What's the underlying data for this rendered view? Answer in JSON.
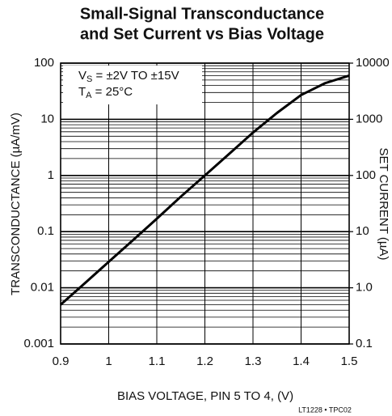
{
  "chart_data": {
    "type": "line",
    "title": [
      "Small-Signal Transconductance",
      "and Set Current vs Bias Voltage"
    ],
    "xlabel": "BIAS VOLTAGE, PIN 5 TO 4, (V)",
    "ylabel": "TRANSCONDUCTANCE (µA/mV)",
    "y2label": "SET CURRENT (µA)",
    "footnote": "LT1228 • TPC02",
    "annotation": [
      {
        "main": "V",
        "sub": "S",
        "rest": " = ±2V TO ±15V"
      },
      {
        "main": "T",
        "sub": "A",
        "rest": " = 25°C"
      }
    ],
    "x": [
      0.9,
      0.95,
      1.0,
      1.05,
      1.1,
      1.15,
      1.2,
      1.25,
      1.3,
      1.35,
      1.4,
      1.45,
      1.5
    ],
    "series": [
      {
        "name": "Transconductance",
        "color": "#000000",
        "values": [
          0.005,
          0.012,
          0.029,
          0.07,
          0.17,
          0.42,
          1.0,
          2.4,
          5.8,
          13,
          27,
          44,
          60
        ]
      }
    ],
    "xlim": [
      0.9,
      1.5
    ],
    "xticks": [
      0.9,
      1.0,
      1.1,
      1.2,
      1.3,
      1.4,
      1.5
    ],
    "ylim": [
      0.001,
      100
    ],
    "yticks": [
      0.001,
      0.01,
      0.1,
      1,
      10,
      100
    ],
    "y2lim": [
      0.1,
      10000
    ],
    "y2ticks": [
      0.1,
      {
        "value": 1,
        "label": "1.0"
      },
      10,
      100,
      1000,
      10000
    ],
    "ylog": true,
    "y2log": true,
    "grid": true,
    "minor_grid": true
  }
}
